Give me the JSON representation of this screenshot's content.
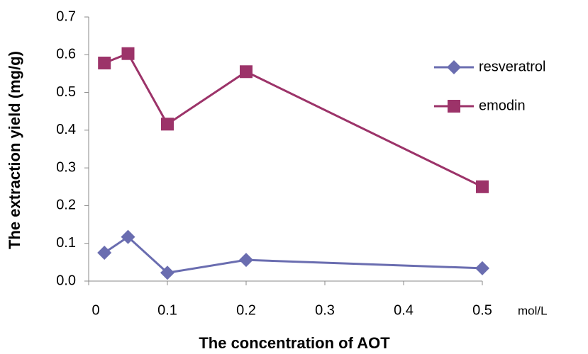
{
  "chart_data": {
    "type": "line",
    "x_label": "The concentration of AOT",
    "y_label": "The extraction yield (mg/g)",
    "x_unit": "mol/L",
    "x": [
      0.02,
      0.05,
      0.1,
      0.2,
      0.5
    ],
    "series": [
      {
        "name": "resveratrol",
        "color": "#6a6db0",
        "marker": "diamond",
        "values": [
          0.075,
          0.117,
          0.022,
          0.056,
          0.034
        ]
      },
      {
        "name": "emodin",
        "color": "#9c3369",
        "marker": "square",
        "values": [
          0.578,
          0.603,
          0.416,
          0.555,
          0.25
        ]
      }
    ],
    "xlim": [
      0,
      0.5
    ],
    "xticks": [
      0,
      0.1,
      0.2,
      0.3,
      0.4,
      0.5
    ],
    "ylim": [
      0,
      0.7
    ],
    "yticks": [
      {
        "value": 0,
        "label": "0.0"
      },
      0.1,
      0.2,
      0.3,
      0.4,
      0.5,
      0.6,
      0.7
    ],
    "legend": "right"
  }
}
